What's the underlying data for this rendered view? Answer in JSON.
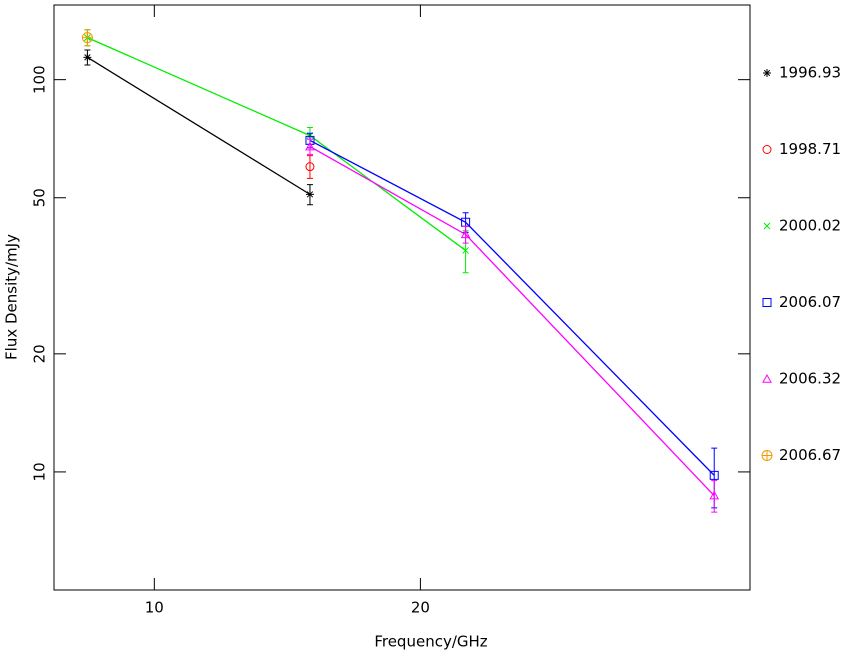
{
  "chart_data": {
    "type": "line",
    "xlabel": "Frequency/GHz",
    "ylabel": "Flux Density/mJy",
    "xscale": "log",
    "yscale": "log",
    "xlim": [
      7.7,
      47.2
    ],
    "ylim": [
      5,
      155
    ],
    "xticks": [
      10,
      20
    ],
    "yticks": [
      10,
      20,
      50,
      100
    ],
    "legend": "right",
    "series": [
      {
        "name": "1996.93",
        "color": "#000000",
        "marker": "asterisk",
        "x": [
          8.4,
          15
        ],
        "values": [
          114,
          51
        ],
        "errors": [
          5,
          3
        ]
      },
      {
        "name": "1998.71",
        "color": "#ff0000",
        "marker": "circle",
        "x": [
          15
        ],
        "values": [
          60
        ],
        "errors": [
          4
        ]
      },
      {
        "name": "2000.02",
        "color": "#00ee00",
        "marker": "x",
        "x": [
          8.4,
          15,
          22.5
        ],
        "values": [
          128,
          72,
          36.7
        ],
        "errors": [
          6,
          3.5,
          4.5
        ]
      },
      {
        "name": "2006.07",
        "color": "#0000ff",
        "marker": "square",
        "x": [
          15,
          22.5,
          43
        ],
        "values": [
          70,
          43.3,
          9.8
        ],
        "errors": [
          3,
          2.5,
          1.7
        ]
      },
      {
        "name": "2006.32",
        "color": "#ff00ff",
        "marker": "triangle",
        "x": [
          15,
          22.5,
          43
        ],
        "values": [
          67.5,
          40.3,
          8.7
        ],
        "errors": [
          3,
          2,
          0.8
        ]
      },
      {
        "name": "2006.67",
        "color": "#ee9900",
        "marker": "circle-plus",
        "x": [
          8.4
        ],
        "values": [
          128
        ],
        "errors": [
          6
        ]
      }
    ]
  }
}
